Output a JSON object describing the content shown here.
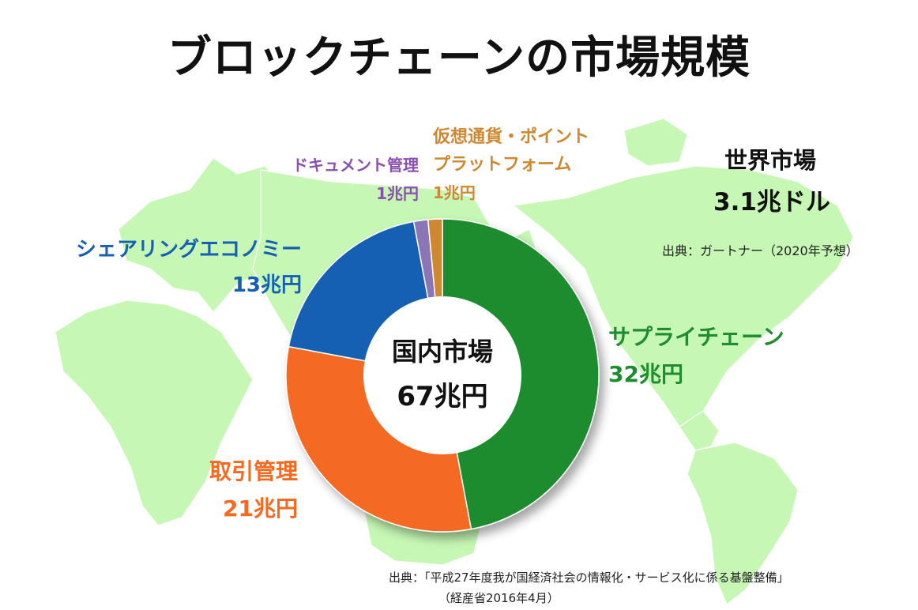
{
  "title": "ブロックチェーンの市場規模",
  "world": {
    "label": "世界市場",
    "value": "3.1兆ドル",
    "source": "出典：ガートナー（2020年予想）"
  },
  "center": {
    "label": "国内市場",
    "value": "67兆円"
  },
  "colors": {
    "supply": "#1f8c2f",
    "trade": "#f56a20",
    "sharing": "#1560b4",
    "document": "#8a74b7",
    "crypto": "#cf8832",
    "map": "#c6f7b4"
  },
  "labels": {
    "crypto_name_1": "仮想通貨・ポイント",
    "crypto_name_2": "プラットフォーム",
    "crypto_value": "1兆円",
    "document_name": "ドキュメント管理",
    "document_value": "1兆円",
    "sharing_name": "シェアリングエコノミー",
    "sharing_value": "13兆円",
    "supply_name": "サプライチェーン",
    "supply_value": "32兆円",
    "trade_name": "取引管理",
    "trade_value": "21兆円"
  },
  "source": {
    "line1": "出典：「平成27年度我が国経済社会の情報化・サービス化に係る基盤整備」",
    "line2": "（経産省2016年4月）"
  },
  "chart_data": {
    "type": "pie",
    "title": "国内市場 67兆円",
    "unit": "兆円",
    "total": 67,
    "slices": [
      {
        "label": "サプライチェーン",
        "value": 32
      },
      {
        "label": "取引管理",
        "value": 21
      },
      {
        "label": "シェアリングエコノミー",
        "value": 13
      },
      {
        "label": "ドキュメント管理",
        "value": 1
      },
      {
        "label": "仮想通貨・ポイントプラットフォーム",
        "value": 1
      }
    ]
  }
}
